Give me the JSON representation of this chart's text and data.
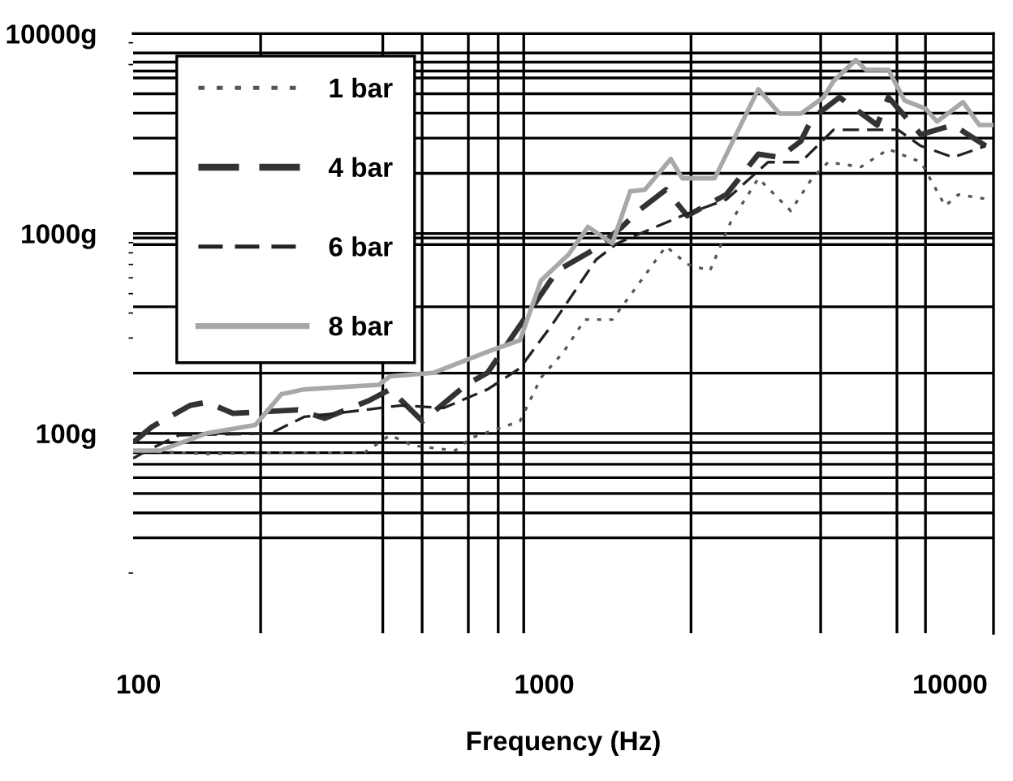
{
  "chart_data": {
    "type": "line",
    "xlabel": "Frequency (Hz)",
    "log": "xy",
    "grid": true,
    "legend": "top left",
    "xlim": [
      97,
      12800
    ],
    "ylim": [
      10,
      10000
    ],
    "xticks": [
      {
        "value": 100,
        "label": "100"
      },
      {
        "value": 200,
        "label": null
      },
      {
        "value": 400,
        "label": null
      },
      {
        "value": 500,
        "label": null
      },
      {
        "value": 650,
        "label": null
      },
      {
        "value": 770,
        "label": null
      },
      {
        "value": 890,
        "label": null
      },
      {
        "value": 1000,
        "label": "1000"
      },
      {
        "value": 2300,
        "label": null
      },
      {
        "value": 4800,
        "label": null
      },
      {
        "value": 7400,
        "label": null
      },
      {
        "value": 8700,
        "label": null
      },
      {
        "value": 10000,
        "label": "10000"
      }
    ],
    "yticks": [
      {
        "value": 30,
        "label": null
      },
      {
        "value": 40,
        "label": null
      },
      {
        "value": 50,
        "label": null
      },
      {
        "value": 60,
        "label": null
      },
      {
        "value": 70,
        "label": null
      },
      {
        "value": 80,
        "label": null
      },
      {
        "value": 90,
        "label": null
      },
      {
        "value": 100,
        "label": "100g"
      },
      {
        "value": 200,
        "label": null
      },
      {
        "value": 430,
        "label": null
      },
      {
        "value": 880,
        "label": null
      },
      {
        "value": 950,
        "label": null
      },
      {
        "value": 1000,
        "label": "1000g"
      },
      {
        "value": 2000,
        "label": null
      },
      {
        "value": 3000,
        "label": null
      },
      {
        "value": 4000,
        "label": null
      },
      {
        "value": 5000,
        "label": null
      },
      {
        "value": 6000,
        "label": null
      },
      {
        "value": 6500,
        "label": null
      },
      {
        "value": 7200,
        "label": null
      },
      {
        "value": 8000,
        "label": null
      },
      {
        "value": 10000,
        "label": "10000g"
      }
    ],
    "series": [
      {
        "name": "1 bar",
        "color": "#555555",
        "line_style": "dotted",
        "x": [
          97,
          147,
          200,
          300,
          360,
          417,
          473,
          603,
          661,
          871,
          982,
          1117,
          1259,
          1472,
          1770,
          1995,
          2250,
          2560,
          2880,
          3370,
          4050,
          4570,
          5010,
          6030,
          7050,
          8480,
          9730,
          10480,
          12590
        ],
        "values": [
          82,
          79,
          80,
          80,
          80,
          98,
          87,
          82,
          95,
          115,
          190,
          256,
          371,
          371,
          617,
          863,
          702,
          651,
          1140,
          1888,
          1298,
          1888,
          2275,
          2153,
          2640,
          2275,
          1374,
          1566,
          1479
        ]
      },
      {
        "name": "4 bar",
        "color": "#333333",
        "line_style": "dashed",
        "x": [
          97,
          108,
          134,
          147,
          171,
          247,
          288,
          370,
          417,
          501,
          642,
          725,
          1076,
          1343,
          1556,
          1706,
          1995,
          2250,
          2810,
          3370,
          3800,
          4290,
          4570,
          5340,
          6610,
          7050,
          8480,
          10180,
          12250
        ],
        "values": [
          90,
          108,
          138,
          143,
          126,
          131,
          119,
          146,
          166,
          115,
          175,
          201,
          650,
          845,
          1079,
          1298,
          1656,
          1227,
          1566,
          2495,
          2405,
          2898,
          3767,
          4800,
          3490,
          4800,
          3126,
          3490,
          2741
        ]
      },
      {
        "name": "6 bar",
        "color": "#222222",
        "line_style": "dashed",
        "x": [
          97,
          105,
          126,
          212,
          256,
          307,
          445,
          565,
          725,
          871,
          1047,
          1343,
          1514,
          2188,
          2810,
          3560,
          4290,
          5160,
          6200,
          7440,
          8480,
          10180,
          12250
        ],
        "values": [
          75,
          82,
          98,
          100,
          121,
          126,
          138,
          134,
          166,
          212,
          351,
          741,
          893,
          1227,
          1479,
          2275,
          2275,
          3300,
          3300,
          3300,
          2741,
          2405,
          2741
        ]
      },
      {
        "name": "8 bar",
        "color": "#a8a8a8",
        "line_style": "solid",
        "x": [
          97,
          113,
          147,
          194,
          225,
          256,
          391,
          417,
          534,
          724,
          871,
          982,
          1148,
          1282,
          1472,
          1629,
          1770,
          2050,
          2188,
          2630,
          3370,
          3800,
          4290,
          4880,
          5160,
          5860,
          6200,
          7050,
          7730,
          8710,
          9290,
          10770,
          11800,
          12700
        ],
        "values": [
          82,
          82,
          100,
          110,
          157,
          166,
          175,
          193,
          201,
          256,
          292,
          582,
          785,
          1079,
          893,
          1626,
          1656,
          2360,
          1888,
          1888,
          5270,
          3980,
          3980,
          4800,
          5780,
          7380,
          6590,
          6590,
          4620,
          4210,
          3630,
          4540,
          3490,
          3490
        ]
      }
    ]
  }
}
